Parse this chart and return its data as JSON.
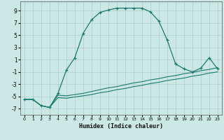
{
  "title": "",
  "xlabel": "Humidex (Indice chaleur)",
  "background_color": "#cce8e4",
  "line_color": "#1a7a6e",
  "grid_color": "#aaceca",
  "xlim": [
    -0.5,
    23.5
  ],
  "ylim": [
    -8,
    10.5
  ],
  "xticks": [
    0,
    1,
    2,
    3,
    4,
    5,
    6,
    7,
    8,
    9,
    10,
    11,
    12,
    13,
    14,
    15,
    16,
    17,
    18,
    19,
    20,
    21,
    22,
    23
  ],
  "yticks": [
    -7,
    -5,
    -3,
    -1,
    1,
    3,
    5,
    7,
    9
  ],
  "main_x": [
    0,
    1,
    2,
    3,
    4,
    5,
    6,
    7,
    8,
    9,
    10,
    11,
    12,
    13,
    14,
    15,
    16,
    17,
    18,
    19,
    20,
    21,
    22,
    23
  ],
  "main_y": [
    -5.5,
    -5.5,
    -6.5,
    -6.8,
    -4.5,
    -0.7,
    1.3,
    5.3,
    7.5,
    8.7,
    9.1,
    9.4,
    9.4,
    9.4,
    9.4,
    8.8,
    7.3,
    4.2,
    0.3,
    -0.5,
    -1.0,
    -0.4,
    1.3,
    -0.5
  ],
  "line2_x": [
    0,
    1,
    2,
    3,
    4,
    5,
    6,
    7,
    8,
    9,
    10,
    11,
    12,
    13,
    14,
    15,
    16,
    17,
    18,
    19,
    20,
    21,
    22,
    23
  ],
  "line2_y": [
    -5.5,
    -5.5,
    -6.5,
    -6.8,
    -4.8,
    -4.9,
    -4.7,
    -4.5,
    -4.2,
    -3.9,
    -3.6,
    -3.4,
    -3.1,
    -2.8,
    -2.6,
    -2.3,
    -2.1,
    -1.8,
    -1.6,
    -1.3,
    -1.1,
    -0.8,
    -0.6,
    -0.3
  ],
  "line3_x": [
    0,
    1,
    2,
    3,
    4,
    5,
    6,
    7,
    8,
    9,
    10,
    11,
    12,
    13,
    14,
    15,
    16,
    17,
    18,
    19,
    20,
    21,
    22,
    23
  ],
  "line3_y": [
    -5.5,
    -5.5,
    -6.5,
    -6.8,
    -5.2,
    -5.3,
    -5.1,
    -4.9,
    -4.7,
    -4.4,
    -4.2,
    -3.9,
    -3.7,
    -3.4,
    -3.2,
    -2.9,
    -2.7,
    -2.4,
    -2.2,
    -2.0,
    -1.7,
    -1.5,
    -1.2,
    -1.0
  ]
}
